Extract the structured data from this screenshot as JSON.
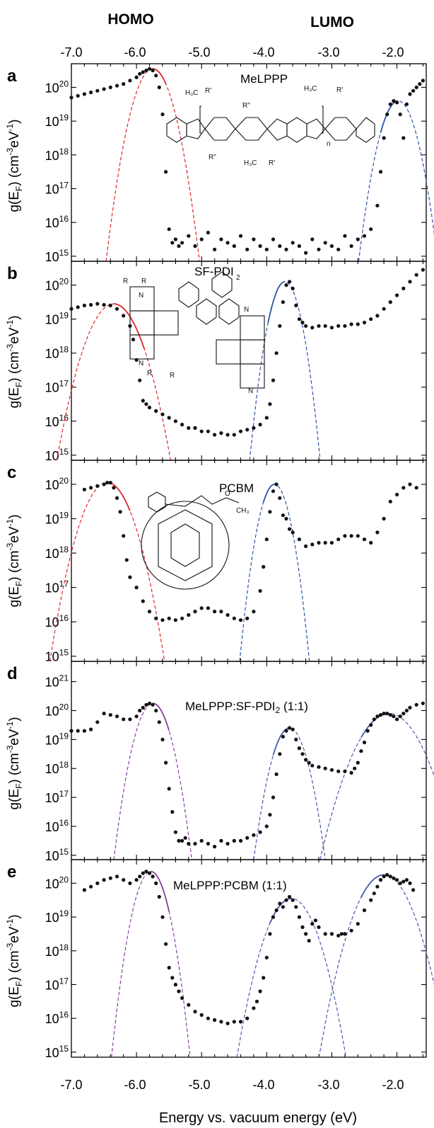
{
  "header": {
    "homo": "HOMO",
    "lumo": "LUMO"
  },
  "x_axis_label": "Energy vs. vacuum energy  (eV)",
  "y_axis_label_parts": [
    "g(E",
    "F",
    ") (cm",
    "-3",
    "eV",
    "-1",
    ")"
  ],
  "x_tick_labels": [
    "-7.0",
    "-6.0",
    "-5.0",
    "-4.0",
    "-3.0",
    "-2.0"
  ],
  "colors": {
    "points": "#111111",
    "homo_fit": "#e0262a",
    "lumo_fit": "#2c54a8",
    "mixed_fit": "#8a3fa0",
    "mixed_fit_lumo": "#4a5aa8"
  },
  "chart_data": [
    {
      "panel": "a",
      "type": "scatter",
      "annotation": "MeLPPP",
      "xlim": [
        -7.0,
        -1.55
      ],
      "ylim_log10": [
        14.85,
        20.7
      ],
      "y_tick_exponents": [
        15,
        16,
        17,
        18,
        19,
        20
      ],
      "x": [
        -7.0,
        -6.9,
        -6.8,
        -6.7,
        -6.6,
        -6.5,
        -6.4,
        -6.3,
        -6.2,
        -6.1,
        -6.0,
        -5.95,
        -5.9,
        -5.85,
        -5.8,
        -5.75,
        -5.7,
        -5.65,
        -5.6,
        -5.55,
        -5.5,
        -5.45,
        -5.4,
        -5.35,
        -5.3,
        -5.2,
        -5.1,
        -5.0,
        -4.9,
        -4.8,
        -4.7,
        -4.6,
        -4.5,
        -4.4,
        -4.3,
        -4.2,
        -4.1,
        -4.0,
        -3.9,
        -3.8,
        -3.7,
        -3.6,
        -3.5,
        -3.4,
        -3.3,
        -3.2,
        -3.1,
        -3.0,
        -2.9,
        -2.8,
        -2.7,
        -2.6,
        -2.5,
        -2.4,
        -2.3,
        -2.25,
        -2.2,
        -2.15,
        -2.1,
        -2.05,
        -2.0,
        -1.95,
        -1.9,
        -1.85,
        -1.8,
        -1.75,
        -1.7,
        -1.65,
        -1.6
      ],
      "log10_y": [
        19.7,
        19.75,
        19.8,
        19.85,
        19.9,
        19.95,
        20.0,
        20.05,
        20.1,
        20.2,
        20.3,
        20.4,
        20.45,
        20.5,
        20.55,
        20.5,
        20.35,
        20.0,
        19.2,
        17.5,
        15.8,
        15.4,
        15.5,
        15.3,
        15.4,
        15.6,
        15.3,
        15.5,
        15.7,
        15.2,
        15.5,
        15.4,
        15.3,
        15.6,
        15.2,
        15.5,
        15.3,
        15.2,
        15.5,
        15.3,
        15.2,
        15.4,
        15.3,
        15.1,
        15.5,
        15.2,
        15.4,
        15.3,
        15.2,
        15.6,
        15.3,
        15.5,
        15.6,
        15.8,
        16.5,
        17.5,
        18.5,
        19.2,
        19.5,
        19.6,
        19.55,
        19.2,
        18.5,
        19.5,
        19.8,
        19.9,
        20.0,
        20.1,
        20.2
      ],
      "fits": [
        {
          "name": "HOMO",
          "center": -5.75,
          "peak_log10": 20.55,
          "sigma": 0.14,
          "fit_range": [
            -5.75,
            -5.55
          ]
        },
        {
          "name": "LUMO",
          "center": -1.98,
          "peak_log10": 19.6,
          "sigma": 0.13,
          "fit_range": [
            -2.25,
            -1.98
          ]
        }
      ]
    },
    {
      "panel": "b",
      "type": "scatter",
      "annotation": "SF-PDI",
      "xlim": [
        -7.0,
        -1.55
      ],
      "ylim_log10": [
        14.85,
        20.7
      ],
      "y_tick_exponents": [
        15,
        16,
        17,
        18,
        19,
        20
      ],
      "x": [
        -7.0,
        -6.9,
        -6.8,
        -6.7,
        -6.6,
        -6.5,
        -6.4,
        -6.3,
        -6.2,
        -6.1,
        -6.05,
        -6.0,
        -5.95,
        -5.9,
        -5.85,
        -5.8,
        -5.7,
        -5.6,
        -5.5,
        -5.4,
        -5.3,
        -5.2,
        -5.1,
        -5.0,
        -4.9,
        -4.8,
        -4.7,
        -4.6,
        -4.5,
        -4.4,
        -4.3,
        -4.2,
        -4.1,
        -4.0,
        -3.95,
        -3.9,
        -3.85,
        -3.8,
        -3.75,
        -3.7,
        -3.65,
        -3.6,
        -3.55,
        -3.5,
        -3.45,
        -3.4,
        -3.3,
        -3.2,
        -3.1,
        -3.0,
        -2.9,
        -2.8,
        -2.7,
        -2.6,
        -2.5,
        -2.4,
        -2.3,
        -2.2,
        -2.1,
        -2.0,
        -1.9,
        -1.8,
        -1.7,
        -1.6
      ],
      "log10_y": [
        19.3,
        19.35,
        19.4,
        19.42,
        19.45,
        19.42,
        19.4,
        19.3,
        19.1,
        18.8,
        18.4,
        17.8,
        17.2,
        16.6,
        16.5,
        16.4,
        16.3,
        16.2,
        16.1,
        16.0,
        15.9,
        15.8,
        15.8,
        15.7,
        15.7,
        15.6,
        15.65,
        15.6,
        15.6,
        15.7,
        15.75,
        15.8,
        15.9,
        16.1,
        16.5,
        17.2,
        18.0,
        18.8,
        19.5,
        20.0,
        20.1,
        19.9,
        19.4,
        19.0,
        18.9,
        18.8,
        18.75,
        18.8,
        18.8,
        18.75,
        18.8,
        18.8,
        18.85,
        18.85,
        18.9,
        19.0,
        19.1,
        19.3,
        19.5,
        19.7,
        19.9,
        20.1,
        20.3,
        20.45
      ],
      "fits": [
        {
          "name": "HOMO",
          "center": -6.35,
          "peak_log10": 19.45,
          "sigma": 0.19,
          "fit_range": [
            -6.35,
            -5.88
          ]
        },
        {
          "name": "LUMO",
          "center": -3.72,
          "peak_log10": 20.1,
          "sigma": 0.11,
          "fit_range": [
            -3.98,
            -3.72
          ]
        }
      ]
    },
    {
      "panel": "c",
      "type": "scatter",
      "annotation": "PCBM",
      "xlim": [
        -7.0,
        -1.55
      ],
      "ylim_log10": [
        14.85,
        20.7
      ],
      "y_tick_exponents": [
        15,
        16,
        17,
        18,
        19,
        20
      ],
      "x": [
        -6.8,
        -6.7,
        -6.6,
        -6.5,
        -6.45,
        -6.4,
        -6.35,
        -6.3,
        -6.25,
        -6.2,
        -6.15,
        -6.1,
        -6.0,
        -5.9,
        -5.8,
        -5.7,
        -5.6,
        -5.5,
        -5.4,
        -5.3,
        -5.2,
        -5.1,
        -5.0,
        -4.9,
        -4.8,
        -4.7,
        -4.6,
        -4.5,
        -4.4,
        -4.3,
        -4.2,
        -4.1,
        -4.05,
        -4.0,
        -3.95,
        -3.9,
        -3.85,
        -3.8,
        -3.75,
        -3.7,
        -3.65,
        -3.6,
        -3.5,
        -3.4,
        -3.3,
        -3.2,
        -3.1,
        -3.0,
        -2.9,
        -2.8,
        -2.7,
        -2.6,
        -2.5,
        -2.4,
        -2.3,
        -2.2,
        -2.1,
        -2.0,
        -1.9,
        -1.8,
        -1.7
      ],
      "log10_y": [
        19.85,
        19.9,
        19.95,
        20.0,
        20.05,
        20.05,
        19.9,
        19.6,
        19.2,
        18.5,
        17.8,
        17.3,
        17.0,
        16.6,
        16.3,
        16.1,
        16.05,
        16.1,
        16.05,
        16.1,
        16.2,
        16.3,
        16.4,
        16.4,
        16.3,
        16.3,
        16.2,
        16.1,
        16.05,
        16.1,
        16.3,
        16.9,
        17.6,
        18.4,
        19.2,
        19.8,
        20.0,
        19.6,
        19.1,
        19.0,
        18.7,
        18.6,
        18.4,
        18.2,
        18.25,
        18.3,
        18.3,
        18.3,
        18.4,
        18.5,
        18.5,
        18.5,
        18.4,
        18.3,
        18.6,
        19.0,
        19.5,
        19.7,
        19.9,
        20.0,
        19.9
      ],
      "fits": [
        {
          "name": "HOMO",
          "center": -6.45,
          "peak_log10": 20.05,
          "sigma": 0.18,
          "fit_range": [
            -6.45,
            -6.1
          ]
        },
        {
          "name": "LUMO",
          "center": -3.88,
          "peak_log10": 20.0,
          "sigma": 0.11,
          "fit_range": [
            -4.05,
            -3.88
          ]
        }
      ]
    },
    {
      "panel": "d",
      "type": "scatter",
      "annotation": "MeLPPP:SF-PDI",
      "annotation_sub": "2",
      "annotation_tail": " (1:1)",
      "xlim": [
        -7.0,
        -1.55
      ],
      "ylim_log10": [
        14.85,
        21.7
      ],
      "y_tick_exponents": [
        15,
        16,
        17,
        18,
        19,
        20,
        21
      ],
      "x": [
        -7.0,
        -6.9,
        -6.8,
        -6.7,
        -6.6,
        -6.5,
        -6.4,
        -6.3,
        -6.2,
        -6.1,
        -6.0,
        -5.95,
        -5.9,
        -5.85,
        -5.8,
        -5.75,
        -5.7,
        -5.65,
        -5.6,
        -5.55,
        -5.5,
        -5.45,
        -5.4,
        -5.35,
        -5.3,
        -5.25,
        -5.2,
        -5.1,
        -5.0,
        -4.9,
        -4.8,
        -4.7,
        -4.6,
        -4.5,
        -4.4,
        -4.3,
        -4.2,
        -4.1,
        -4.0,
        -3.95,
        -3.9,
        -3.85,
        -3.8,
        -3.75,
        -3.7,
        -3.65,
        -3.6,
        -3.55,
        -3.5,
        -3.45,
        -3.4,
        -3.35,
        -3.3,
        -3.2,
        -3.1,
        -3.0,
        -2.9,
        -2.8,
        -2.7,
        -2.65,
        -2.6,
        -2.55,
        -2.5,
        -2.45,
        -2.4,
        -2.35,
        -2.3,
        -2.25,
        -2.2,
        -2.15,
        -2.1,
        -2.05,
        -2.0,
        -1.95,
        -1.9,
        -1.85,
        -1.8,
        -1.7,
        -1.6
      ],
      "log10_y": [
        19.3,
        19.3,
        19.3,
        19.35,
        19.6,
        19.9,
        19.85,
        19.8,
        19.7,
        19.7,
        19.8,
        20.0,
        20.1,
        20.2,
        20.25,
        20.2,
        20.0,
        19.6,
        19.0,
        18.2,
        17.3,
        16.5,
        15.8,
        15.5,
        15.5,
        15.6,
        15.4,
        15.4,
        15.5,
        15.4,
        15.3,
        15.5,
        15.4,
        15.5,
        15.5,
        15.6,
        15.7,
        15.8,
        16.0,
        16.4,
        17.0,
        17.8,
        18.5,
        19.1,
        19.3,
        19.4,
        19.35,
        19.0,
        18.7,
        18.5,
        18.3,
        18.2,
        18.1,
        18.05,
        18.0,
        17.95,
        17.9,
        17.9,
        17.85,
        18.0,
        18.2,
        18.6,
        18.9,
        19.3,
        19.5,
        19.7,
        19.8,
        19.85,
        19.9,
        19.9,
        19.85,
        19.8,
        19.7,
        19.8,
        19.9,
        20.0,
        20.1,
        20.2,
        20.25
      ],
      "fits": [
        {
          "name": "HOMO",
          "center": -5.75,
          "peak_log10": 20.25,
          "sigma": 0.12,
          "fit_range": [
            -5.75,
            -5.5
          ]
        },
        {
          "name": "LUMO1",
          "center": -3.65,
          "peak_log10": 19.4,
          "sigma": 0.12,
          "fit_range": [
            -3.9,
            -3.65
          ]
        },
        {
          "name": "LUMO2",
          "center": -2.12,
          "peak_log10": 19.9,
          "sigma": 0.22,
          "fit_range": [
            -2.55,
            -2.12
          ]
        }
      ]
    },
    {
      "panel": "e",
      "type": "scatter",
      "annotation": "MeLPPP:PCBM (1:1)",
      "xlim": [
        -7.0,
        -1.55
      ],
      "ylim_log10": [
        14.85,
        20.7
      ],
      "y_tick_exponents": [
        15,
        16,
        17,
        18,
        19,
        20
      ],
      "x": [
        -6.8,
        -6.7,
        -6.6,
        -6.5,
        -6.4,
        -6.3,
        -6.2,
        -6.1,
        -6.0,
        -5.95,
        -5.9,
        -5.85,
        -5.8,
        -5.75,
        -5.7,
        -5.65,
        -5.6,
        -5.55,
        -5.5,
        -5.45,
        -5.4,
        -5.35,
        -5.3,
        -5.2,
        -5.1,
        -5.0,
        -4.9,
        -4.8,
        -4.7,
        -4.6,
        -4.5,
        -4.4,
        -4.3,
        -4.2,
        -4.15,
        -4.1,
        -4.05,
        -4.0,
        -3.95,
        -3.9,
        -3.85,
        -3.8,
        -3.75,
        -3.7,
        -3.65,
        -3.6,
        -3.55,
        -3.5,
        -3.45,
        -3.4,
        -3.35,
        -3.3,
        -3.25,
        -3.2,
        -3.1,
        -3.0,
        -2.9,
        -2.85,
        -2.8,
        -2.7,
        -2.6,
        -2.5,
        -2.4,
        -2.35,
        -2.3,
        -2.25,
        -2.2,
        -2.15,
        -2.1,
        -2.05,
        -2.0,
        -1.95,
        -1.9,
        -1.85,
        -1.8,
        -1.75
      ],
      "log10_y": [
        19.8,
        19.9,
        20.0,
        20.1,
        20.15,
        20.2,
        20.1,
        20.0,
        20.1,
        20.2,
        20.3,
        20.35,
        20.3,
        20.2,
        20.0,
        19.6,
        19.0,
        18.2,
        17.5,
        17.2,
        17.0,
        16.8,
        16.6,
        16.4,
        16.2,
        16.1,
        16.0,
        15.95,
        15.9,
        15.85,
        15.9,
        15.9,
        16.0,
        16.3,
        16.5,
        16.8,
        17.2,
        17.8,
        18.5,
        19.0,
        19.2,
        19.4,
        19.3,
        19.5,
        19.6,
        19.5,
        19.3,
        19.0,
        18.7,
        18.5,
        18.3,
        18.8,
        18.9,
        18.7,
        18.5,
        18.5,
        18.45,
        18.5,
        18.5,
        18.6,
        18.8,
        19.2,
        19.5,
        19.7,
        19.9,
        20.1,
        20.2,
        20.25,
        20.2,
        20.15,
        20.1,
        20.0,
        20.05,
        20.1,
        20.0,
        19.8
      ],
      "fits": [
        {
          "name": "HOMO",
          "center": -5.78,
          "peak_log10": 20.35,
          "sigma": 0.12,
          "fit_range": [
            -5.78,
            -5.5
          ]
        },
        {
          "name": "LUMO1",
          "center": -3.62,
          "peak_log10": 19.55,
          "sigma": 0.18,
          "fit_range": [
            -3.95,
            -3.62
          ]
        },
        {
          "name": "LUMO2",
          "center": -2.2,
          "peak_log10": 20.25,
          "sigma": 0.2,
          "fit_range": [
            -2.55,
            -2.2
          ]
        }
      ]
    }
  ]
}
